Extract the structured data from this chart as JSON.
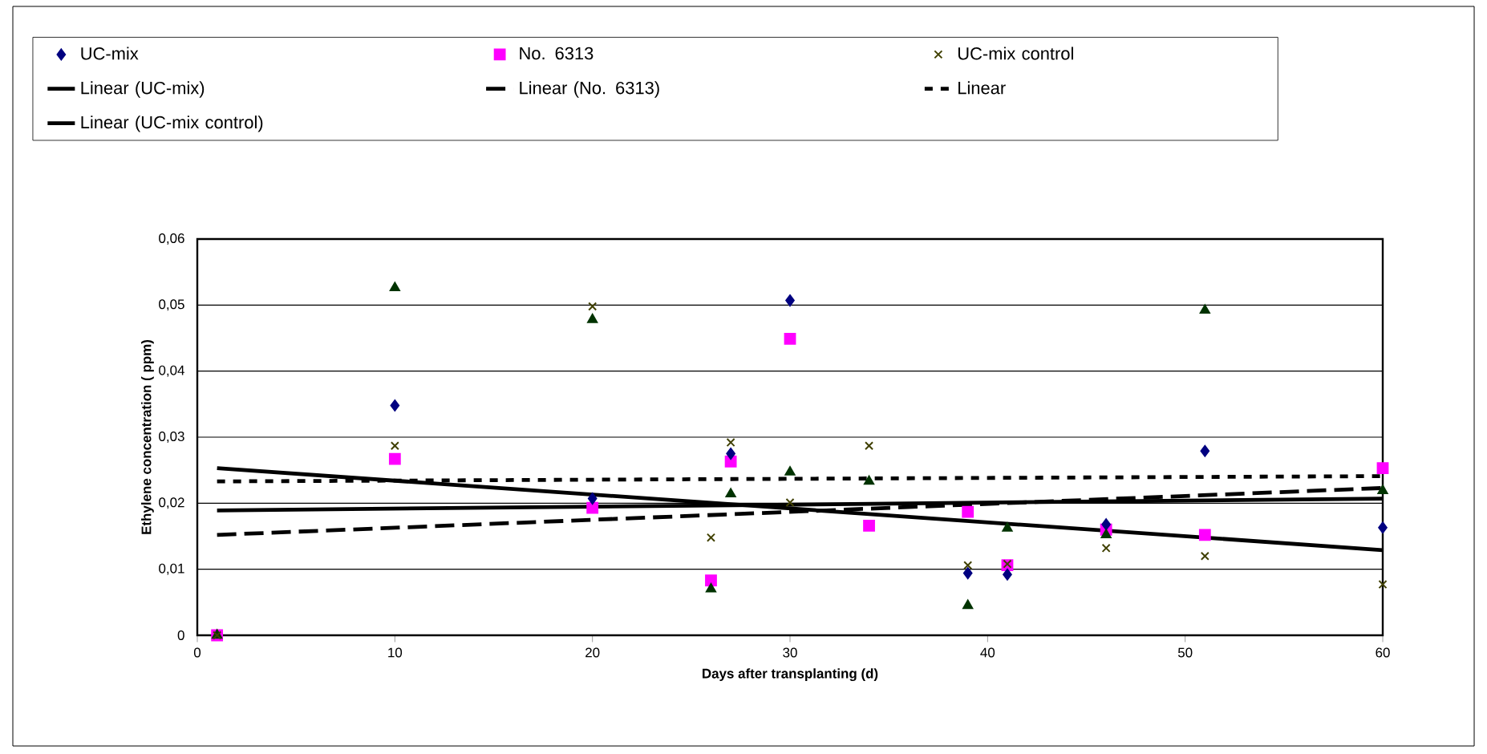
{
  "chart_data": {
    "type": "scatter",
    "xlabel": "Days after transplanting (d)",
    "ylabel": "Ethylene concentration ( ppm)",
    "x": [
      1,
      10,
      20,
      26,
      27,
      30,
      34,
      39,
      41,
      46,
      51,
      60
    ],
    "xlim": [
      0,
      60
    ],
    "xticks": [
      0,
      10,
      20,
      30,
      40,
      50,
      60
    ],
    "ylim": [
      0,
      0.06
    ],
    "yticks": [
      0,
      {
        "value": 0.01,
        "label": "0,01"
      },
      {
        "value": 0.02,
        "label": "0,02"
      },
      {
        "value": 0.03,
        "label": "0,03"
      },
      {
        "value": 0.04,
        "label": "0,04"
      },
      {
        "value": 0.05,
        "label": "0,05"
      },
      {
        "value": 0.06,
        "label": "0,06"
      }
    ],
    "grid": "y",
    "legend": "top",
    "series": [
      {
        "name": "UC-mix",
        "color": "#000080",
        "marker": "diamond",
        "values": [
          null,
          0.0348,
          0.0207,
          null,
          0.0275,
          0.0507,
          null,
          0.0094,
          0.0092,
          0.0168,
          0.0279,
          0.0163
        ]
      },
      {
        "name": "No. 6313",
        "color": "#ff00ff",
        "marker": "square",
        "values": [
          0,
          0.0267,
          0.0193,
          0.0083,
          0.0263,
          0.0449,
          0.0166,
          0.0187,
          0.0106,
          0.016,
          0.0152,
          0.0253
        ]
      },
      {
        "color": "#003300",
        "marker": "triangle",
        "values": [
          0,
          0.0526,
          0.0478,
          0.007,
          0.0214,
          0.0247,
          0.0233,
          0.0045,
          0.0162,
          0.0152,
          0.0492,
          0.0219
        ]
      },
      {
        "name": "UC-mix control",
        "color": "#404000",
        "marker": "cross",
        "values": [
          0,
          0.0287,
          0.0498,
          0.0148,
          0.0292,
          0.0201,
          0.0287,
          0.0106,
          0.0108,
          0.0132,
          0.012,
          0.0077
        ]
      },
      {
        "name": "Linear (UC-mix)",
        "type": "line",
        "color": "#000000",
        "line_style": "solid",
        "values": [
          0.0189,
          null,
          null,
          null,
          null,
          null,
          null,
          null,
          null,
          null,
          null,
          0.0207
        ]
      },
      {
        "name": "Linear (No. 6313)",
        "type": "line",
        "color": "#000000",
        "line_style": "dashed",
        "values": [
          0.0152,
          null,
          null,
          null,
          null,
          null,
          null,
          null,
          null,
          null,
          null,
          0.0223
        ]
      },
      {
        "name": "Linear",
        "type": "line",
        "color": "#000000",
        "line_style": "dotted",
        "values": [
          0.0233,
          null,
          null,
          null,
          null,
          null,
          null,
          null,
          null,
          null,
          null,
          0.0241
        ]
      },
      {
        "name": "Linear (UC-mix control)",
        "type": "line",
        "color": "#000000",
        "line_style": "solid",
        "values": [
          0.0253,
          null,
          null,
          null,
          null,
          null,
          null,
          null,
          null,
          null,
          null,
          0.0129
        ]
      }
    ]
  }
}
